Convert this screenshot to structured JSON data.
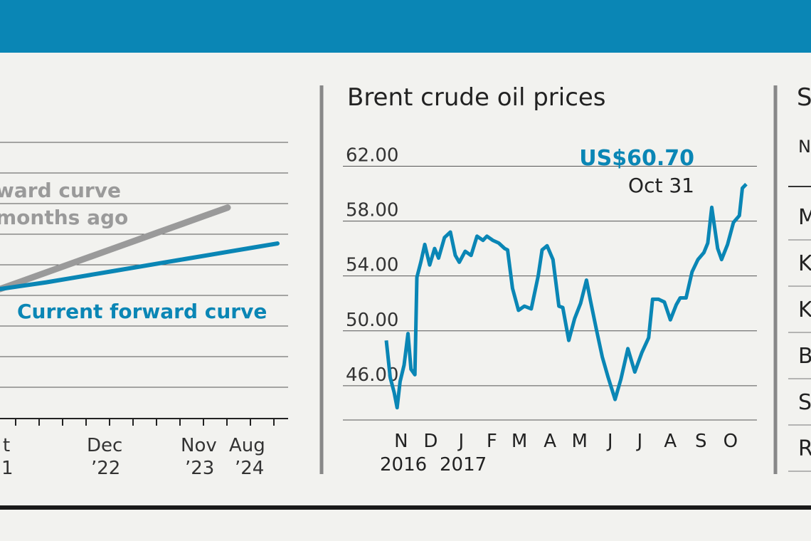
{
  "colors": {
    "band": "#0a86b5",
    "current_curve": "#0a86b5",
    "prior_curve": "#9a9a9a",
    "brent_line": "#0a86b5",
    "gridline": "#555555",
    "divider": "#888888",
    "rule": "#1a1a1a"
  },
  "chart_data": [
    {
      "type": "line",
      "title": "",
      "xlabel": "",
      "ylabel": "",
      "x_tick_labels": [
        {
          "line1": "t",
          "line2": "1"
        },
        {
          "line1": "Dec",
          "line2": "’22"
        },
        {
          "line1": "Nov",
          "line2": "’23"
        },
        {
          "line1": "Aug",
          "line2": "’24"
        }
      ],
      "grid": true,
      "series": [
        {
          "name": "ward curve\nmonths ago",
          "color": "#9a9a9a",
          "x": [
            0,
            1,
            2,
            3,
            4,
            5,
            6,
            7,
            8,
            9,
            10
          ],
          "values": [
            0,
            1.1,
            2.2,
            3.3,
            4.4,
            5.5,
            6.6,
            7.7,
            8.8,
            9.9,
            11
          ]
        },
        {
          "name": "Current forward curve",
          "color": "#0a86b5",
          "x": [
            0,
            1,
            2,
            3,
            4,
            5,
            6,
            7,
            8,
            9,
            10,
            11,
            12
          ],
          "values": [
            0,
            0.6,
            1.2,
            1.9,
            2.6,
            3.3,
            4.0,
            4.7,
            5.4,
            6.1,
            6.8,
            7.5,
            8.2
          ]
        }
      ]
    },
    {
      "type": "line",
      "title": "Brent crude oil prices",
      "xlabel": "",
      "ylabel": "",
      "ylim": [
        43.5,
        64
      ],
      "y_ticks": [
        "62.00",
        "58.00",
        "54.00",
        "50.00",
        "46.00"
      ],
      "y_tick_values": [
        62,
        58,
        54,
        50,
        46
      ],
      "x_ticks": [
        "N",
        "D",
        "J",
        "F",
        "M",
        "A",
        "M",
        "J",
        "J",
        "A",
        "S",
        "O"
      ],
      "x_year_labels": [
        "2016",
        "2017"
      ],
      "grid": true,
      "annotation": {
        "value": "US$60.70",
        "date": "Oct 31"
      },
      "series": [
        {
          "color": "#0a86b5",
          "x": [
            "2016-10-31",
            "2016-11-04",
            "2016-11-08",
            "2016-11-11",
            "2016-11-14",
            "2016-11-18",
            "2016-11-22",
            "2016-11-25",
            "2016-11-29",
            "2016-12-01",
            "2016-12-05",
            "2016-12-09",
            "2016-12-14",
            "2016-12-19",
            "2016-12-23",
            "2016-12-29",
            "2017-01-04",
            "2017-01-09",
            "2017-01-13",
            "2017-01-19",
            "2017-01-25",
            "2017-01-31",
            "2017-02-06",
            "2017-02-10",
            "2017-02-16",
            "2017-02-22",
            "2017-02-28",
            "2017-03-03",
            "2017-03-08",
            "2017-03-14",
            "2017-03-20",
            "2017-03-27",
            "2017-04-03",
            "2017-04-07",
            "2017-04-12",
            "2017-04-18",
            "2017-04-24",
            "2017-04-28",
            "2017-05-04",
            "2017-05-10",
            "2017-05-16",
            "2017-05-22",
            "2017-05-26",
            "2017-06-01",
            "2017-06-07",
            "2017-06-13",
            "2017-06-20",
            "2017-06-26",
            "2017-07-03",
            "2017-07-10",
            "2017-07-17",
            "2017-07-24",
            "2017-07-28",
            "2017-08-03",
            "2017-08-09",
            "2017-08-15",
            "2017-08-21",
            "2017-08-25",
            "2017-08-31",
            "2017-09-06",
            "2017-09-12",
            "2017-09-18",
            "2017-09-22",
            "2017-09-26",
            "2017-10-02",
            "2017-10-06",
            "2017-10-12",
            "2017-10-18",
            "2017-10-24",
            "2017-10-27",
            "2017-10-31"
          ],
          "values": [
            49.3,
            46.6,
            45.5,
            44.4,
            46.3,
            47.5,
            49.8,
            47.2,
            46.8,
            53.9,
            55.0,
            56.3,
            54.8,
            56.0,
            55.3,
            56.8,
            57.2,
            55.5,
            55.0,
            55.8,
            55.5,
            56.9,
            56.6,
            56.9,
            56.6,
            56.4,
            56.0,
            55.9,
            53.1,
            51.5,
            51.8,
            51.6,
            54.0,
            55.9,
            56.2,
            55.2,
            51.8,
            51.7,
            49.3,
            50.9,
            52.0,
            53.7,
            52.2,
            50.1,
            48.1,
            46.6,
            45.0,
            46.5,
            48.7,
            47.0,
            48.4,
            49.5,
            52.3,
            52.3,
            52.1,
            50.8,
            51.9,
            52.4,
            52.4,
            54.3,
            55.2,
            55.7,
            56.4,
            59.0,
            56.0,
            55.2,
            56.3,
            57.9,
            58.4,
            60.4,
            60.7
          ]
        }
      ]
    },
    {
      "type": "table",
      "title": "S",
      "column_headers": [
        "N"
      ],
      "rows": [
        [
          "M"
        ],
        [
          "K"
        ],
        [
          "K"
        ],
        [
          "B"
        ],
        [
          "S"
        ],
        [
          "R"
        ]
      ]
    }
  ]
}
